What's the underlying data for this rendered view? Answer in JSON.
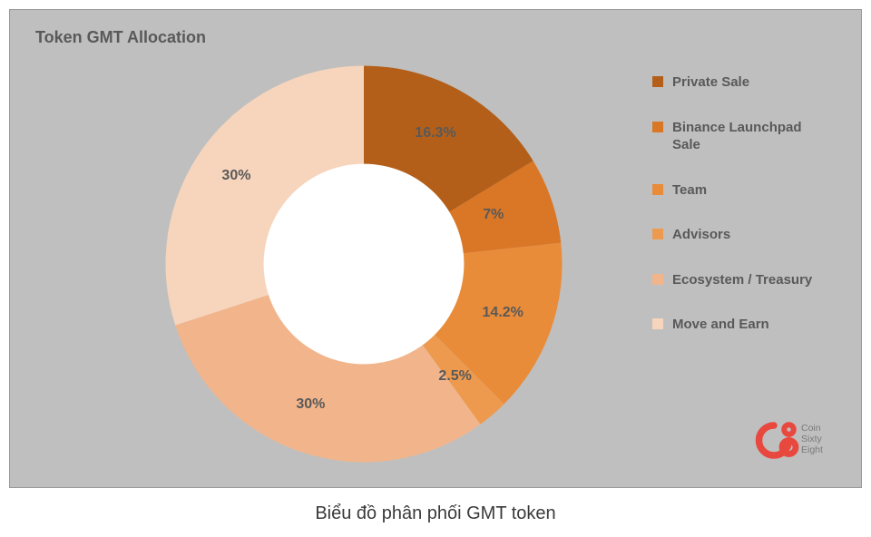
{
  "chart": {
    "type": "donut",
    "title": "Token GMT Allocation",
    "background_color": "#bfbfbf",
    "inner_radius_ratio": 0.48,
    "label_fontsize": 16,
    "label_color": "#595959",
    "title_fontsize": 18,
    "title_color": "#595959",
    "slices": [
      {
        "key": "private_sale",
        "label": "Private Sale",
        "value": 16.3,
        "display": "16.3%",
        "color": "#b45f19"
      },
      {
        "key": "binance_launchpad",
        "label": "Binance Launchpad Sale",
        "value": 7,
        "display": "7%",
        "color": "#d97726"
      },
      {
        "key": "team",
        "label": "Team",
        "value": 14.2,
        "display": "14.2%",
        "color": "#e88c3a"
      },
      {
        "key": "advisors",
        "label": "Advisors",
        "value": 2.5,
        "display": "2.5%",
        "color": "#ed9a4f"
      },
      {
        "key": "ecosystem",
        "label": "Ecosystem / Treasury",
        "value": 30,
        "display": "30%",
        "color": "#f2b58b"
      },
      {
        "key": "move_earn",
        "label": "Move and Earn",
        "value": 30,
        "display": "30%",
        "color": "#f7d5bc"
      }
    ],
    "legend": {
      "text_color": "#595959",
      "fontsize": 15
    }
  },
  "brand": {
    "name": "Coin Sixty Eight",
    "line1": "Coin",
    "line2": "Sixty",
    "line3": "Eight",
    "icon_color": "#e8483e",
    "text_color": "#7a7a7a"
  },
  "caption": "Biểu đồ phân phối GMT token"
}
